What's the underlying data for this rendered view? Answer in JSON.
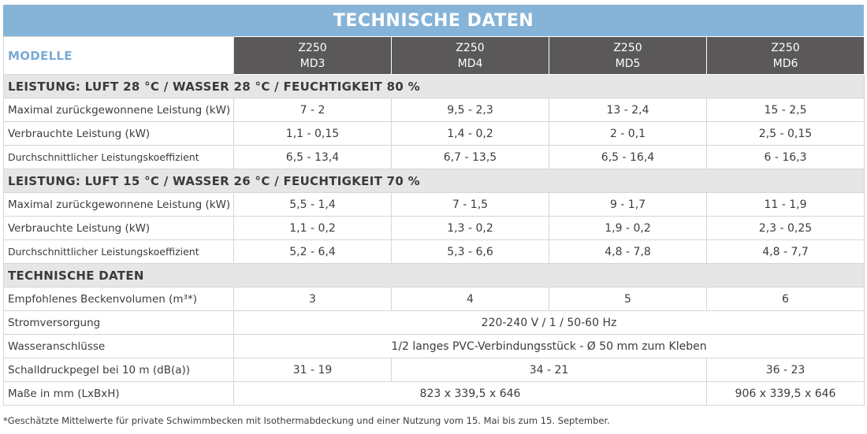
{
  "title": "TECHNISCHE DATEN",
  "models_label": "MODELLE",
  "models": [
    {
      "line1": "Z250",
      "line2": "MD3"
    },
    {
      "line1": "Z250",
      "line2": "MD4"
    },
    {
      "line1": "Z250",
      "line2": "MD5"
    },
    {
      "line1": "Z250",
      "line2": "MD6"
    }
  ],
  "section1": {
    "title": "LEISTUNG: LUFT 28 °C / WASSER 28 °C / FEUCHTIGKEIT 80 %",
    "rows": [
      {
        "label": "Maximal zurückgewonnene Leistung (kW)",
        "values": [
          "7 - 2",
          "9,5 - 2,3",
          "13 - 2,4",
          "15 - 2,5"
        ]
      },
      {
        "label": "Verbrauchte Leistung (kW)",
        "values": [
          "1,1 - 0,15",
          "1,4 - 0,2",
          "2 - 0,1",
          "2,5 - 0,15"
        ]
      },
      {
        "label": "Durchschnittlicher Leistungskoeffizient",
        "values": [
          "6,5 - 13,4",
          "6,7 - 13,5",
          "6,5 - 16,4",
          "6 - 16,3"
        ]
      }
    ]
  },
  "section2": {
    "title": "LEISTUNG: LUFT 15 °C / WASSER 26 °C / FEUCHTIGKEIT 70 %",
    "rows": [
      {
        "label": "Maximal zurückgewonnene Leistung (kW)",
        "values": [
          "5,5 - 1,4",
          "7 - 1,5",
          "9 - 1,7",
          "11 - 1,9"
        ]
      },
      {
        "label": "Verbrauchte Leistung (kW)",
        "values": [
          "1,1 - 0,2",
          "1,3 - 0,2",
          "1,9 - 0,2",
          "2,3 - 0,25"
        ]
      },
      {
        "label": "Durchschnittlicher Leistungskoeffizient",
        "values": [
          "5,2 - 6,4",
          "5,3 - 6,6",
          "4,8 - 7,8",
          "4,8 - 7,7"
        ]
      }
    ]
  },
  "section3": {
    "title": "TECHNISCHE DATEN",
    "pool_volume": {
      "label": "Empfohlenes Beckenvolumen (m³*)",
      "values": [
        "3",
        "4",
        "5",
        "6"
      ]
    },
    "power_supply": {
      "label": "Stromversorgung",
      "value": "220-240 V / 1 / 50-60 Hz"
    },
    "water_connections": {
      "label": "Wasseranschlüsse",
      "value": "1/2 langes PVC-Verbindungsstück - Ø 50 mm zum Kleben"
    },
    "sound_pressure": {
      "label": "Schalldruckpegel bei 10 m (dB(a))",
      "md3": "31 - 19",
      "md4_md5": "34 - 21",
      "md6": "36 - 23"
    },
    "dimensions": {
      "label": "Maße in mm (LxBxH)",
      "md3_md5": "823 x 339,5 x 646",
      "md6": "906 x 339,5 x 646"
    }
  },
  "footnote": "*Geschätzte Mittelwerte für private Schwimmbecken mit Isothermabdeckung und einer Nutzung vom 15. Mai bis zum 15. September."
}
